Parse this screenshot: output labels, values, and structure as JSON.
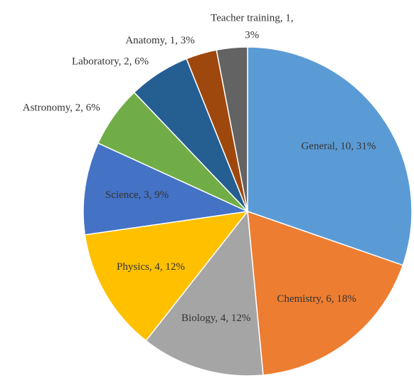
{
  "chart_data": {
    "type": "pie",
    "categories": [
      "General",
      "Chemistry",
      "Biology",
      "Physics",
      "Science",
      "Astronomy",
      "Laboratory",
      "Anatomy",
      "Teacher training"
    ],
    "values": [
      10,
      6,
      4,
      4,
      3,
      2,
      2,
      1,
      1
    ],
    "value_labels": [
      "General, 10, 31%",
      "Chemistry, 6, 18%",
      "Biology, 4, 12%",
      "Physics, 4, 12%",
      "Science, 3, 9%",
      "Astronomy, 2, 6%",
      "Laboratory, 2, 6%",
      "Anatomy, 1, 3%",
      "Teacher training, 1, 3%"
    ],
    "colors": [
      "#5b9bd5",
      "#ed7d31",
      "#a5a5a5",
      "#ffc000",
      "#4472c4",
      "#70ad47",
      "#255e91",
      "#9e480e",
      "#636363"
    ]
  }
}
